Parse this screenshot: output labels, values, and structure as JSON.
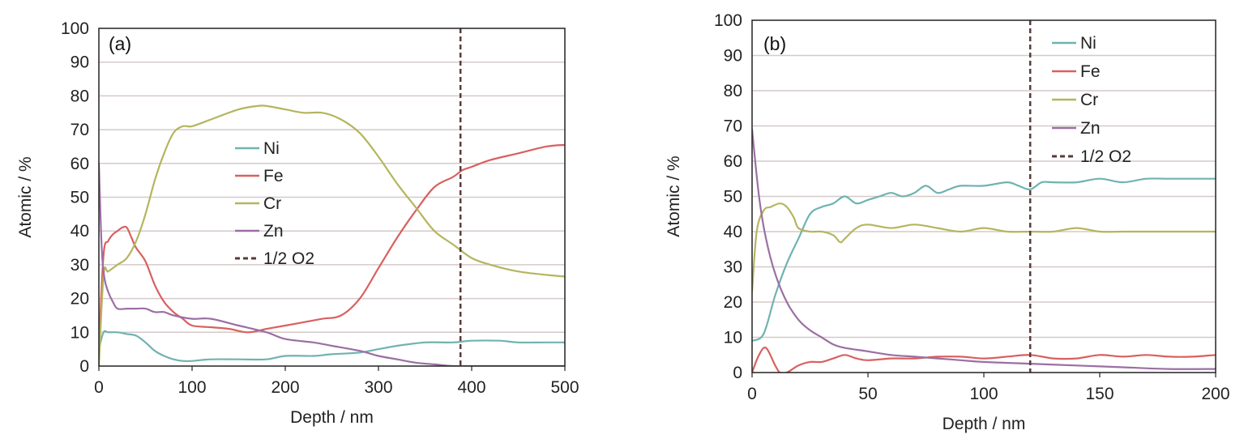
{
  "chart_data": [
    {
      "type": "line",
      "panel_label": "(a)",
      "xlabel": "Depth / nm",
      "ylabel": "Atomic / %",
      "xlim": [
        0,
        500
      ],
      "ylim": [
        0,
        100
      ],
      "xticks": [
        0,
        100,
        200,
        300,
        400,
        500
      ],
      "yticks": [
        0,
        10,
        20,
        30,
        40,
        50,
        60,
        70,
        80,
        90,
        100
      ],
      "grid": "horizontal",
      "legend_position": "center",
      "series": [
        {
          "name": "Ni",
          "color": "#6fb3b0",
          "x": [
            0,
            5,
            10,
            20,
            30,
            40,
            50,
            60,
            70,
            80,
            90,
            100,
            120,
            150,
            180,
            200,
            230,
            250,
            280,
            300,
            320,
            350,
            380,
            400,
            430,
            450,
            480,
            500
          ],
          "y": [
            5,
            10,
            10,
            10,
            9.5,
            9,
            7,
            4.5,
            3,
            2,
            1.5,
            1.5,
            2,
            2,
            2,
            3,
            3,
            3.5,
            4,
            5,
            6,
            7,
            7,
            7.5,
            7.5,
            7,
            7,
            7
          ]
        },
        {
          "name": "Fe",
          "color": "#d9605f",
          "x": [
            0,
            5,
            10,
            15,
            20,
            25,
            30,
            35,
            40,
            50,
            60,
            70,
            80,
            90,
            100,
            120,
            140,
            160,
            180,
            200,
            220,
            240,
            260,
            280,
            300,
            320,
            340,
            360,
            380,
            390,
            400,
            420,
            450,
            480,
            500
          ],
          "y": [
            5,
            33,
            37,
            39,
            40,
            41,
            41,
            38,
            35,
            31,
            24,
            19,
            16,
            14,
            12,
            11.5,
            11,
            10,
            11,
            12,
            13,
            14,
            15,
            20,
            29,
            38,
            46,
            53,
            56,
            58,
            59,
            61,
            63,
            65,
            65.5
          ]
        },
        {
          "name": "Cr",
          "color": "#b5b55f",
          "x": [
            0,
            5,
            10,
            20,
            30,
            40,
            50,
            60,
            70,
            80,
            90,
            100,
            120,
            150,
            170,
            180,
            200,
            220,
            240,
            260,
            280,
            300,
            320,
            340,
            360,
            380,
            400,
            420,
            450,
            480,
            500
          ],
          "y": [
            0,
            27,
            28,
            30,
            32,
            37,
            45,
            55,
            63,
            69,
            71,
            71,
            73,
            76,
            77,
            77,
            76,
            75,
            75,
            73,
            69,
            62,
            54,
            47,
            40,
            36,
            32,
            30,
            28,
            27,
            26.5
          ]
        },
        {
          "name": "Zn",
          "color": "#9b6fa3",
          "x": [
            0,
            3,
            6,
            10,
            15,
            20,
            30,
            40,
            50,
            60,
            70,
            80,
            100,
            120,
            150,
            180,
            200,
            230,
            250,
            280,
            300,
            320,
            340,
            360,
            380,
            400,
            450,
            500
          ],
          "y": [
            60,
            35,
            26,
            22,
            19,
            17,
            17,
            17,
            17,
            16,
            16,
            15,
            14,
            14,
            12,
            10,
            8,
            7,
            6,
            4.5,
            3,
            2,
            1,
            0.5,
            0,
            0,
            0,
            0
          ]
        }
      ],
      "marker": {
        "name": "1/2 O2",
        "x": 388,
        "style": "dashed",
        "color": "#5a3a3a"
      }
    },
    {
      "type": "line",
      "panel_label": "(b)",
      "xlabel": "Depth / nm",
      "ylabel": "Atomic / %",
      "xlim": [
        0,
        200
      ],
      "ylim": [
        0,
        100
      ],
      "xticks": [
        0,
        50,
        100,
        150,
        200
      ],
      "yticks": [
        0,
        10,
        20,
        30,
        40,
        50,
        60,
        70,
        80,
        90,
        100
      ],
      "grid": "horizontal",
      "legend_position": "top-right",
      "series": [
        {
          "name": "Ni",
          "color": "#6fb3b0",
          "x": [
            0,
            5,
            10,
            15,
            20,
            25,
            30,
            35,
            40,
            45,
            50,
            55,
            60,
            65,
            70,
            75,
            80,
            85,
            90,
            100,
            110,
            115,
            120,
            125,
            130,
            140,
            150,
            160,
            170,
            180,
            190,
            200
          ],
          "y": [
            9,
            11,
            22,
            31,
            38,
            45,
            47,
            48,
            50,
            48,
            49,
            50,
            51,
            50,
            51,
            53,
            51,
            52,
            53,
            53,
            54,
            53,
            52,
            54,
            54,
            54,
            55,
            54,
            55,
            55,
            55,
            55
          ]
        },
        {
          "name": "Fe",
          "color": "#d9605f",
          "x": [
            0,
            3,
            6,
            10,
            12,
            15,
            20,
            25,
            30,
            35,
            40,
            45,
            50,
            60,
            70,
            80,
            90,
            100,
            110,
            120,
            130,
            140,
            150,
            160,
            170,
            180,
            190,
            200
          ],
          "y": [
            0,
            5,
            7,
            2,
            0,
            0,
            2,
            3,
            3,
            4,
            5,
            4,
            3.5,
            4,
            4,
            4.5,
            4.5,
            4,
            4.5,
            5,
            4,
            4,
            5,
            4.5,
            5,
            4.5,
            4.5,
            5
          ]
        },
        {
          "name": "Cr",
          "color": "#b5b55f",
          "x": [
            0,
            2,
            5,
            8,
            12,
            15,
            18,
            20,
            25,
            30,
            35,
            38,
            40,
            45,
            50,
            60,
            70,
            80,
            90,
            100,
            110,
            120,
            130,
            140,
            150,
            160,
            170,
            180,
            190,
            200
          ],
          "y": [
            23,
            40,
            46,
            47,
            48,
            47,
            44,
            41,
            40,
            40,
            39,
            37,
            38,
            41,
            42,
            41,
            42,
            41,
            40,
            41,
            40,
            40,
            40,
            41,
            40,
            40,
            40,
            40,
            40,
            40
          ]
        },
        {
          "name": "Zn",
          "color": "#9b6fa3",
          "x": [
            0,
            3,
            6,
            10,
            15,
            20,
            25,
            30,
            35,
            40,
            50,
            60,
            70,
            80,
            90,
            100,
            120,
            140,
            160,
            180,
            200
          ],
          "y": [
            69,
            50,
            38,
            28,
            20,
            15,
            12,
            10,
            8,
            7,
            6,
            5,
            4.5,
            4,
            3.5,
            3,
            2.5,
            2,
            1.5,
            1,
            1
          ]
        }
      ],
      "marker": {
        "name": "1/2 O2",
        "x": 120,
        "style": "dashed",
        "color": "#5a3a3a"
      }
    }
  ]
}
